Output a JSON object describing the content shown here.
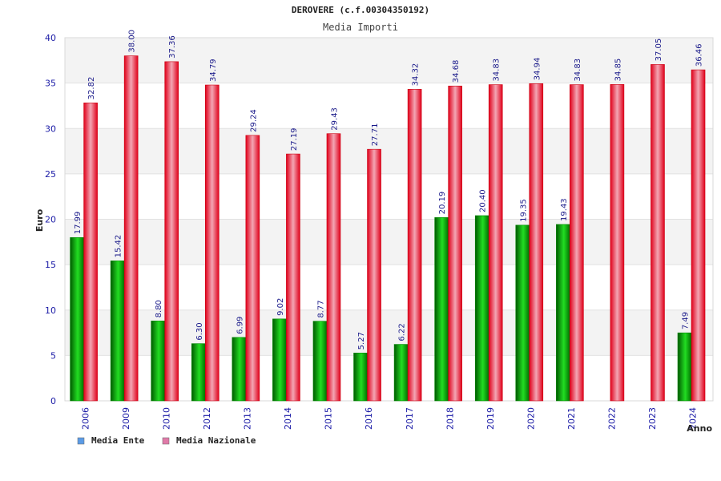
{
  "chart_data": {
    "type": "bar",
    "title": "DEROVERE (c.f.00304350192)",
    "subtitle": "Media Importi",
    "ylabel": "Euro",
    "xlabel": "Anno",
    "ylim": [
      0,
      40
    ],
    "yticks": [
      0,
      5,
      10,
      15,
      20,
      25,
      30,
      35,
      40
    ],
    "ytick_labels": [
      "0",
      "5",
      "10",
      "15",
      "20",
      "25",
      "30",
      "35",
      "40"
    ],
    "grid": true,
    "legend_position": "bottom-left",
    "categories": [
      "2006",
      "2009",
      "2010",
      "2012",
      "2013",
      "2014",
      "2015",
      "2016",
      "2017",
      "2018",
      "2019",
      "2020",
      "2021",
      "2022",
      "2023",
      "2024"
    ],
    "series": [
      {
        "name": "Media Ente",
        "legend_color": "#5b9be6",
        "bar_color": "#00b000",
        "values": [
          17.99,
          15.42,
          8.8,
          6.3,
          6.99,
          9.02,
          8.77,
          5.27,
          6.22,
          20.19,
          20.4,
          19.35,
          19.43,
          null,
          null,
          7.49
        ],
        "labels": [
          "17.99",
          "15.42",
          "8.80",
          "6.30",
          "6.99",
          "9.02",
          "8.77",
          "5.27",
          "6.22",
          "20.19",
          "20.40",
          "19.35",
          "19.43",
          "",
          "",
          "7.49"
        ]
      },
      {
        "name": "Media Nazionale",
        "legend_color": "#e07aa8",
        "bar_color": "#ee1111",
        "values": [
          32.82,
          38.0,
          37.36,
          34.79,
          29.24,
          27.19,
          29.43,
          27.71,
          34.32,
          34.68,
          34.83,
          34.94,
          34.83,
          34.85,
          37.05,
          36.46
        ],
        "labels": [
          "32.82",
          "38.00",
          "37.36",
          "34.79",
          "29.24",
          "27.19",
          "29.43",
          "27.71",
          "34.32",
          "34.68",
          "34.83",
          "34.94",
          "34.83",
          "34.85",
          "37.05",
          "36.46"
        ]
      }
    ]
  }
}
